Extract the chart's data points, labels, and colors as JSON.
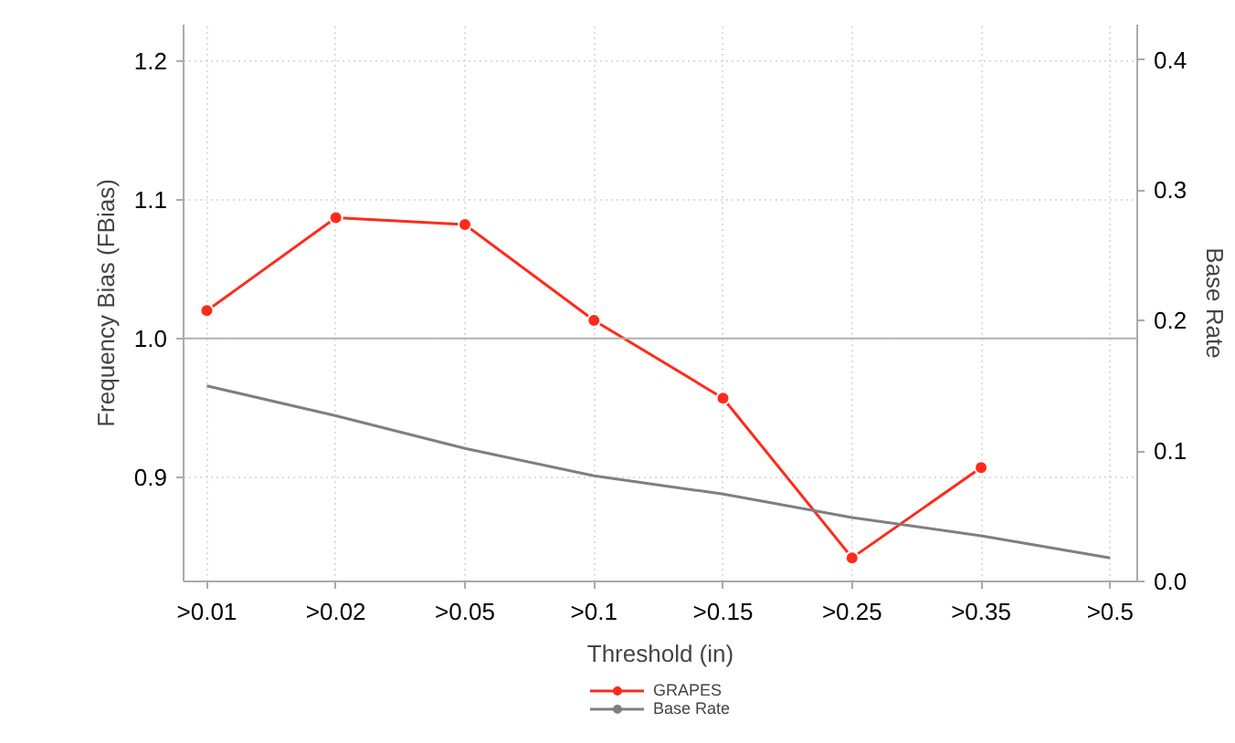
{
  "chart_data": {
    "type": "line",
    "xlabel": "Threshold (in)",
    "ylabel": "Frequency Bias (FBias)",
    "y2label": "Base Rate",
    "categories": [
      ">0.01",
      ">0.02",
      ">0.05",
      ">0.1",
      ">0.15",
      ">0.25",
      ">0.35",
      ">0.5"
    ],
    "series": [
      {
        "name": "GRAPES",
        "color": "#ff2a1a",
        "marker": "circle",
        "values": [
          1.02,
          1.087,
          1.082,
          1.013,
          0.957,
          0.842,
          0.907,
          null
        ]
      },
      {
        "name": "Base Rate",
        "color": "#7f7f7f",
        "marker": "none",
        "axis": "y2",
        "values": [
          0.15,
          0.127,
          0.102,
          0.081,
          0.067,
          0.049,
          0.035,
          0.018
        ]
      }
    ],
    "ylim": [
      0.825,
      1.226
    ],
    "yticks": [
      0.9,
      {
        "value": 1.0,
        "label": "1.0"
      },
      1.1,
      1.2
    ],
    "y2lim": [
      0.0,
      0.427
    ],
    "y2ticks": [
      {
        "value": 0.0,
        "label": "0.0"
      },
      0.1,
      0.2,
      0.3,
      0.4
    ],
    "ref_lines": [
      {
        "axis": "y",
        "value": 1.0,
        "color": "#b0b0b0"
      }
    ],
    "grid": true,
    "legend": "bottom",
    "line_style": "solid"
  }
}
